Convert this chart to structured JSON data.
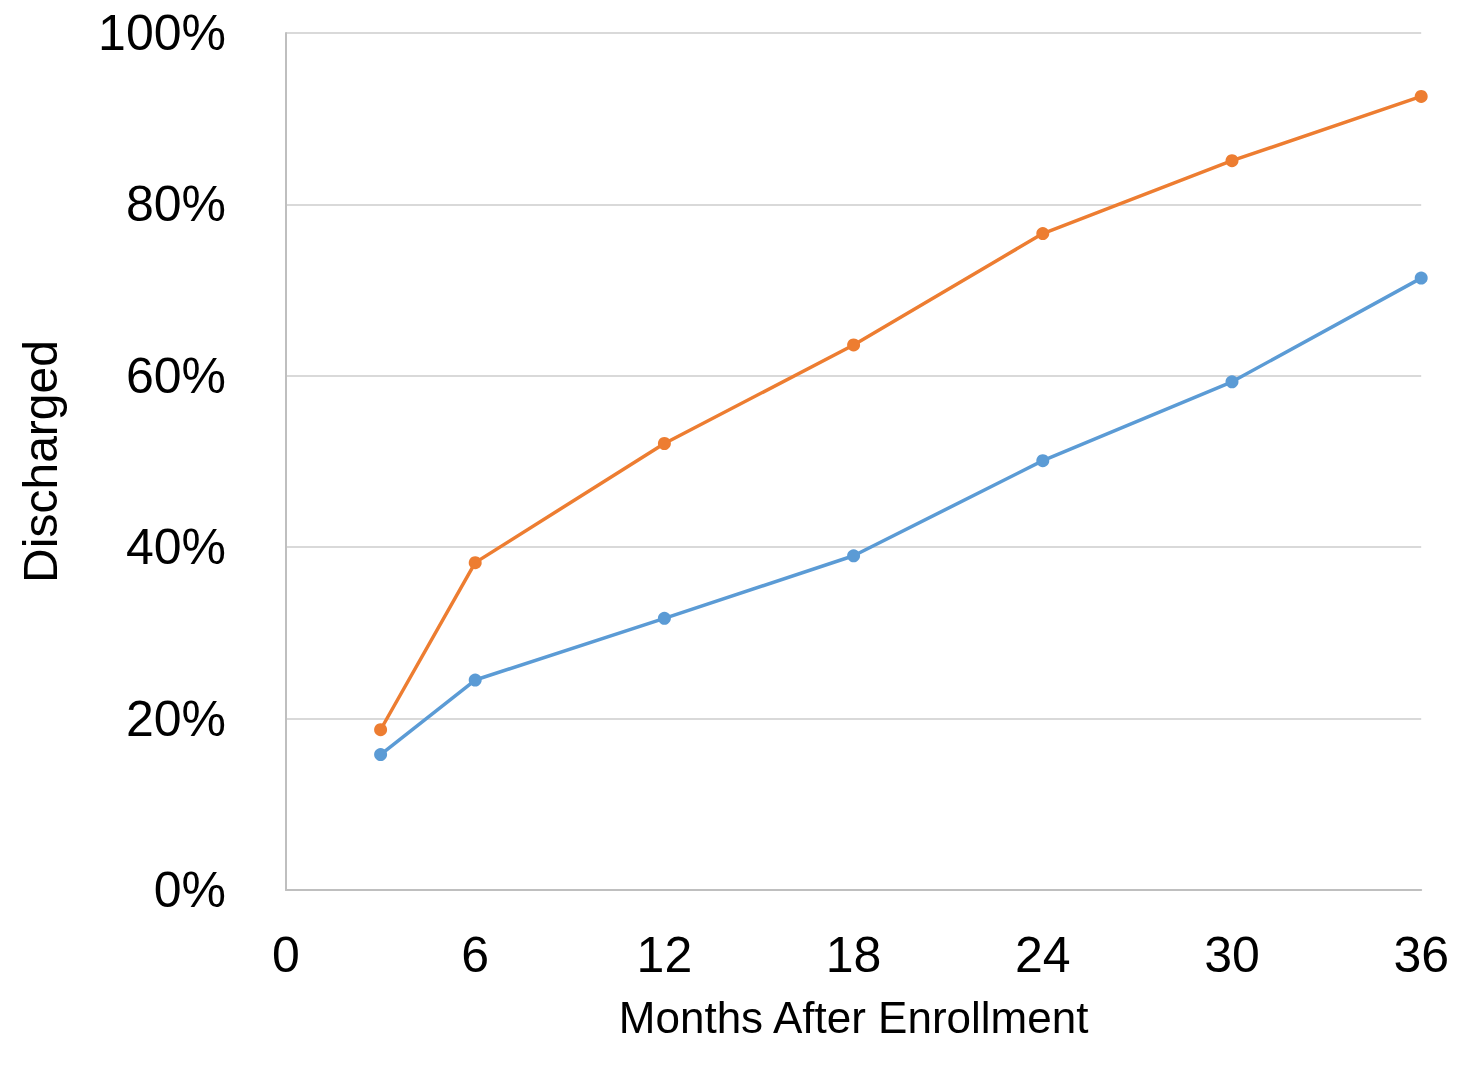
{
  "chart_data": {
    "type": "line",
    "xlabel": "Months After Enrollment",
    "ylabel": "Discharged",
    "xlim": [
      0,
      36
    ],
    "xticks": [
      0,
      6,
      12,
      18,
      24,
      30,
      36
    ],
    "ylim": [
      0,
      100
    ],
    "yticks": [
      {
        "value": 0,
        "label": "0%"
      },
      {
        "value": 20,
        "label": "20%"
      },
      {
        "value": 40,
        "label": "40%"
      },
      {
        "value": 60,
        "label": "60%"
      },
      {
        "value": 80,
        "label": "80%"
      },
      {
        "value": 100,
        "label": "100%"
      }
    ],
    "x": [
      3,
      6,
      12,
      18,
      24,
      30,
      36
    ],
    "series": [
      {
        "color": "#ed7d31",
        "values": [
          18.7,
          38.2,
          52.1,
          63.6,
          76.6,
          85.1,
          92.6
        ]
      },
      {
        "color": "#5b9bd5",
        "values": [
          15.8,
          24.5,
          31.7,
          39.0,
          50.1,
          59.3,
          71.4
        ]
      }
    ],
    "grid": "y",
    "marker": "circle",
    "line_style": "solid"
  }
}
